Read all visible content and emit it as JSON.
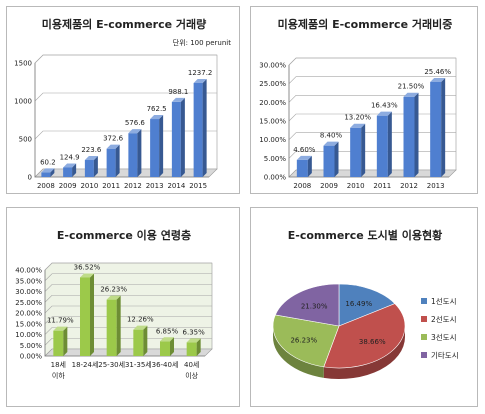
{
  "chart_data": [
    {
      "type": "bar",
      "title": "미용제품의 E-commerce 거래량",
      "subtitle": "단위: 100 perunit",
      "categories": [
        "2008",
        "2009",
        "2010",
        "2011",
        "2012",
        "2013",
        "2014",
        "2015"
      ],
      "values": [
        60.2,
        124.9,
        223.6,
        372.6,
        576.6,
        762.5,
        988.1,
        1237.2
      ],
      "value_labels": [
        "60.2",
        "124.9",
        "223.6",
        "372.6",
        "576.6",
        "762.5",
        "988.1",
        "1237.2"
      ],
      "ylim": [
        0,
        1500
      ],
      "yticks": [
        "0",
        "500",
        "1000",
        "1500"
      ],
      "grid": true,
      "color": "#4f7fd0"
    },
    {
      "type": "bar",
      "title": "미용제품의 E-commerce 거래비중",
      "categories": [
        "2008",
        "2009",
        "2010",
        "2011",
        "2012",
        "2013"
      ],
      "values": [
        4.6,
        8.4,
        13.2,
        16.43,
        21.5,
        25.46
      ],
      "value_labels": [
        "4.60%",
        "8.40%",
        "13.20%",
        "16.43%",
        "21.50%",
        "25.46%"
      ],
      "ylim": [
        0,
        30
      ],
      "yticks": [
        "0.00%",
        "5.00%",
        "10.00%",
        "15.00%",
        "20.00%",
        "25.00%",
        "30.00%"
      ],
      "grid": true,
      "color": "#4f7fd0"
    },
    {
      "type": "bar",
      "title": "E-commerce 이용 연령층",
      "categories": [
        [
          "18세",
          "이하"
        ],
        [
          "18-24세"
        ],
        [
          "25-30세"
        ],
        [
          "31-35세"
        ],
        [
          "36-40세"
        ],
        [
          "40세",
          "이상"
        ]
      ],
      "values": [
        11.79,
        36.52,
        26.23,
        12.26,
        6.85,
        6.35
      ],
      "value_labels": [
        "11.79%",
        "36.52%",
        "26.23%",
        "12.26%",
        "6.85%",
        "6.35%"
      ],
      "ylim": [
        0,
        40
      ],
      "yticks": [
        "0.00%",
        "5.00%",
        "10.00%",
        "15.00%",
        "20.00%",
        "25.00%",
        "30.00%",
        "35.00%",
        "40.00%"
      ],
      "grid": true,
      "color": "#9cc94a"
    },
    {
      "type": "pie",
      "title": "E-commerce 도시별 이용현황",
      "slices": [
        {
          "name": "1선도시",
          "value": 16.49,
          "label": "16.49%",
          "color": "#4f81bd"
        },
        {
          "name": "2선도시",
          "value": 38.66,
          "label": "38.66%",
          "color": "#c0504d"
        },
        {
          "name": "3선도시",
          "value": 26.23,
          "label": "26.23%",
          "color": "#9bbb59"
        },
        {
          "name": "기타도시",
          "value": 21.3,
          "label": "21.30%",
          "color": "#8064a2"
        }
      ],
      "legend": "right"
    }
  ]
}
